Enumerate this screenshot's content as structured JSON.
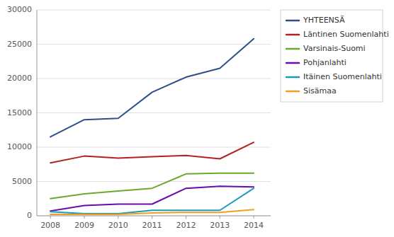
{
  "chart_data": {
    "type": "line",
    "x": [
      2008,
      2009,
      2010,
      2011,
      2012,
      2013,
      2014
    ],
    "series": [
      {
        "name": "YHTEENSÄ",
        "color": "#2e4f8c",
        "values": [
          11500,
          14000,
          14200,
          18000,
          20200,
          21500,
          25800
        ]
      },
      {
        "name": "Läntinen Suomenlahti",
        "color": "#b22222",
        "values": [
          7700,
          8700,
          8400,
          8600,
          8800,
          8300,
          10700
        ]
      },
      {
        "name": "Varsinais-Suomi",
        "color": "#6aaa2a",
        "values": [
          2500,
          3200,
          3600,
          4000,
          6100,
          6200,
          6200
        ]
      },
      {
        "name": "Pohjanlahti",
        "color": "#6a0dad",
        "values": [
          700,
          1500,
          1700,
          1700,
          4000,
          4300,
          4200
        ]
      },
      {
        "name": "Itäinen Suomenlahti",
        "color": "#1a9dba",
        "values": [
          600,
          300,
          300,
          800,
          800,
          800,
          4000
        ]
      },
      {
        "name": "Sisämaa",
        "color": "#f0a020",
        "values": [
          200,
          200,
          200,
          400,
          500,
          500,
          900
        ]
      }
    ],
    "xlim": [
      2007.6,
      2014.5
    ],
    "xticks": [
      2008,
      2009,
      2010,
      2011,
      2012,
      2013,
      2014
    ],
    "ylim": [
      0,
      30000
    ],
    "yticks": [
      0,
      5000,
      10000,
      15000,
      20000,
      25000,
      30000
    ],
    "grid": true,
    "legend": "right"
  }
}
